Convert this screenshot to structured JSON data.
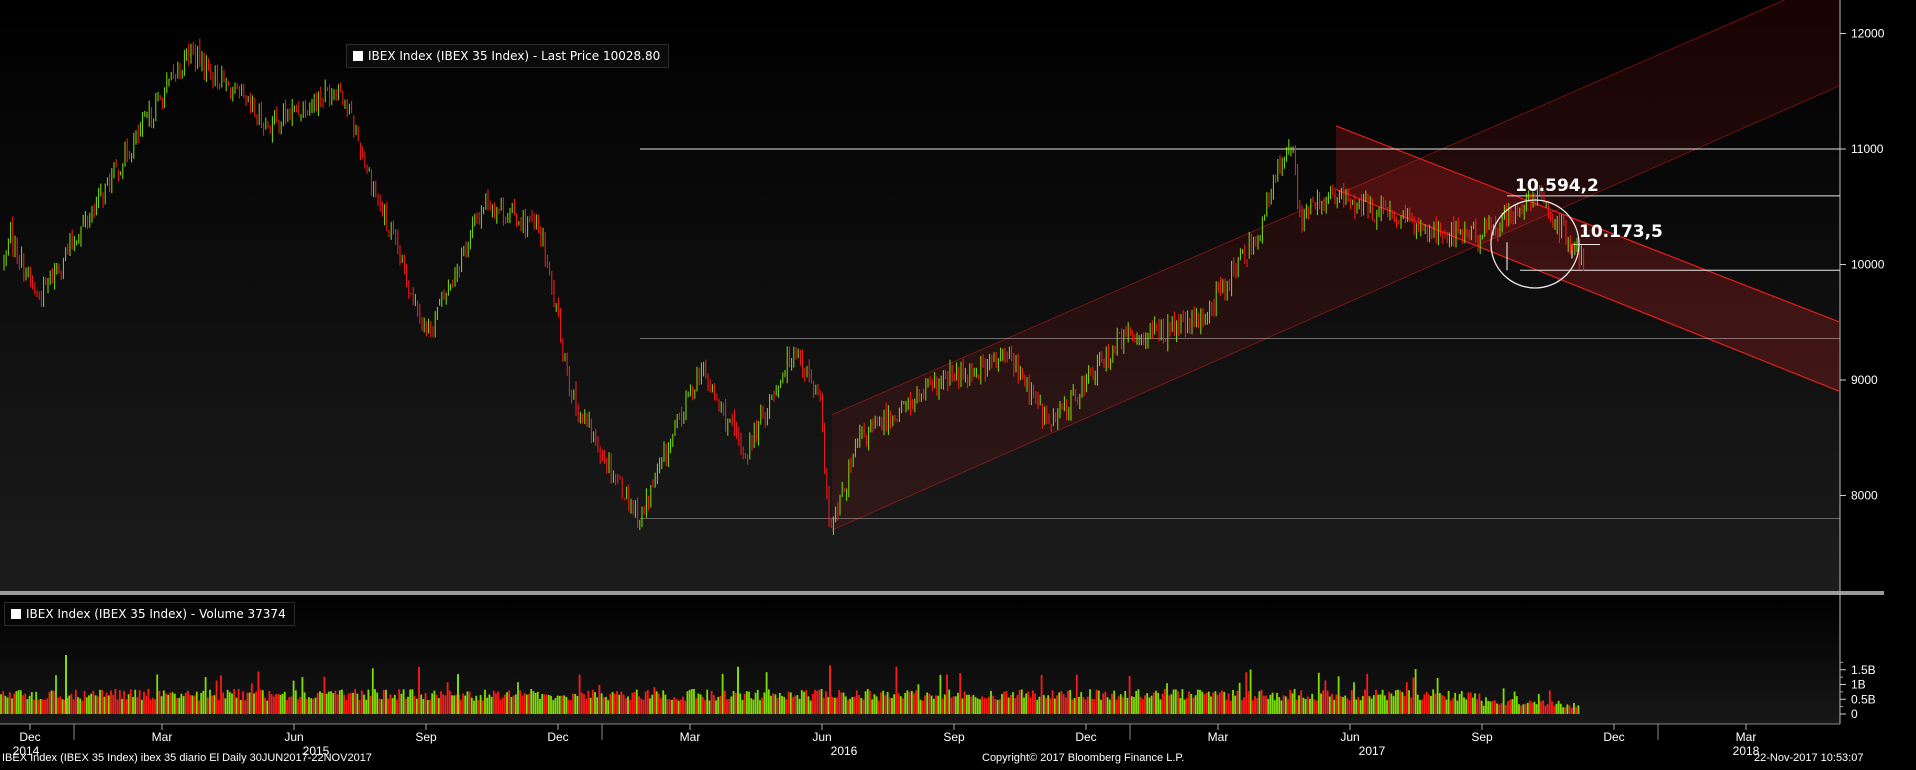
{
  "legend_price": {
    "label": "IBEX Index (IBEX 35 Index)  - Last Price",
    "value": "10028.80"
  },
  "legend_volume": {
    "label": "IBEX Index (IBEX 35 Index)  - Volume",
    "value": "37374"
  },
  "footer": {
    "left": "IBEX Index (IBEX 35 Index) ibex 35 diario El  Daily 30JUN2017-22NOV2017",
    "center": "Copyright© 2017 Bloomberg Finance L.P.",
    "right": "22-Nov-2017 10:53:07"
  },
  "annotations": {
    "high": "10.594,2",
    "current": "10.173,5"
  },
  "colors": {
    "up": "#7fe000",
    "down": "#ff1a1a",
    "channel": "#ff2020",
    "level": "#ffffff"
  },
  "chart_data": [
    {
      "type": "candlestick",
      "ylim": [
        7200,
        12300
      ],
      "y_ticks": [
        8000,
        9000,
        10000,
        11000,
        12000
      ],
      "y_tick_labels": [
        "8000",
        "9000",
        "10000",
        "11000",
        "12000"
      ],
      "x_months": [
        "Dec",
        "Mar",
        "Jun",
        "Sep",
        "Dec",
        "Mar",
        "Jun",
        "Sep",
        "Dec",
        "Mar",
        "Jun",
        "Sep",
        "Dec",
        "Mar"
      ],
      "x_years": [
        "2014",
        "2015",
        "2016",
        "2017",
        "2018"
      ],
      "key_points": [
        {
          "x": "Dec 2014",
          "y": 10300
        },
        {
          "x": "Jan 2015",
          "y": 9700
        },
        {
          "x": "Apr 2015",
          "y": 11850
        },
        {
          "x": "Jun 2015",
          "y": 11200
        },
        {
          "x": "Jul 2015",
          "y": 11550
        },
        {
          "x": "Aug 2015",
          "y": 10500
        },
        {
          "x": "Sep 2015",
          "y": 9400
        },
        {
          "x": "Oct 2015",
          "y": 10550
        },
        {
          "x": "Dec 2015",
          "y": 10300
        },
        {
          "x": "Jan 2016",
          "y": 8800
        },
        {
          "x": "Feb 2016",
          "y": 7800
        },
        {
          "x": "Mar 2016",
          "y": 9100
        },
        {
          "x": "Apr 2016",
          "y": 8350
        },
        {
          "x": "May 2016",
          "y": 9300
        },
        {
          "x": "Jun 2016",
          "y": 8800
        },
        {
          "x": "Jun 2016",
          "y": 7650
        },
        {
          "x": "Jul 2016",
          "y": 8500
        },
        {
          "x": "Sep 2016",
          "y": 9000
        },
        {
          "x": "Oct 2016",
          "y": 9200
        },
        {
          "x": "Nov 2016",
          "y": 8600
        },
        {
          "x": "Dec 2016",
          "y": 9350
        },
        {
          "x": "Feb 2017",
          "y": 9500
        },
        {
          "x": "Mar 2017",
          "y": 10300
        },
        {
          "x": "Apr 2017",
          "y": 10400
        },
        {
          "x": "May 2017",
          "y": 11150
        },
        {
          "x": "Jul 2017",
          "y": 10600
        },
        {
          "x": "Aug 2017",
          "y": 10300
        },
        {
          "x": "Sep 2017",
          "y": 10250
        },
        {
          "x": "Oct 2017",
          "y": 10594.2
        },
        {
          "x": "Nov 2017",
          "y": 10028.8
        }
      ],
      "levels": [
        11000,
        10594.2,
        10173.5,
        9950,
        9360,
        7800
      ],
      "channels": [
        {
          "name": "up-channel",
          "start": {
            "x": "Jun 2016",
            "lower": 7700,
            "upper": 8700
          },
          "end": {
            "x": "Mar 2018",
            "lower": 11550,
            "upper": 12500
          }
        },
        {
          "name": "down-channel",
          "start": {
            "x": "May 2017",
            "lower": 10650,
            "upper": 11200
          },
          "end": {
            "x": "Mar 2018",
            "lower": 8900,
            "upper": 9500
          }
        }
      ]
    },
    {
      "type": "bar",
      "series": [
        {
          "name": "Volume",
          "last": 37374
        }
      ],
      "y_ticks": [
        0,
        0.5,
        1,
        1.5
      ],
      "y_tick_labels": [
        "0",
        "0.5B",
        "1B",
        "1.5B"
      ],
      "ylim": [
        0,
        2.1
      ]
    }
  ]
}
